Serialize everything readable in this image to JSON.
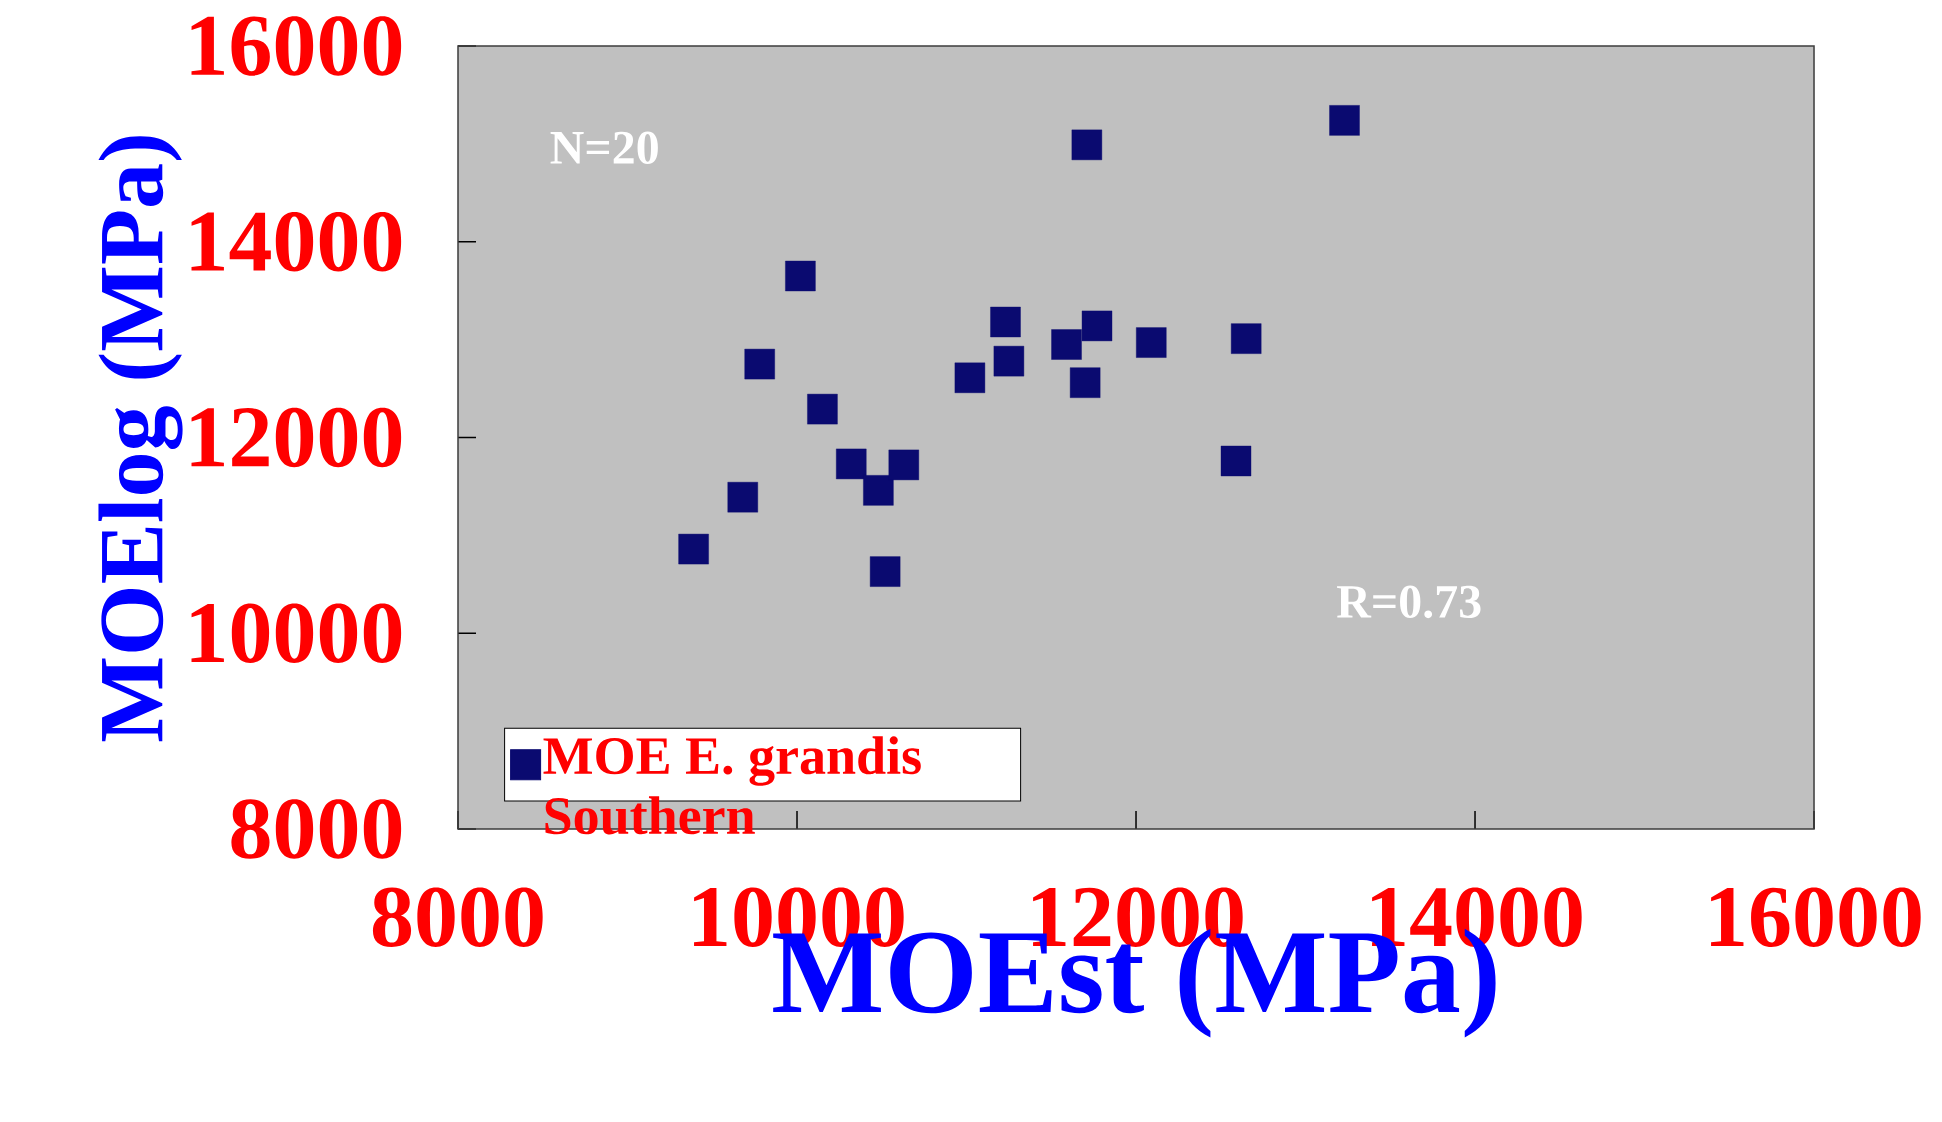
{
  "chart_data": {
    "type": "scatter",
    "xlabel": "MOEst (MPa)",
    "ylabel": "MOElog (MPa)",
    "xlim": [
      8000,
      16000
    ],
    "ylim": [
      8000,
      16000
    ],
    "xticks": [
      8000,
      10000,
      12000,
      14000,
      16000
    ],
    "yticks": [
      8000,
      10000,
      12000,
      14000,
      16000
    ],
    "x": [
      9390,
      9680,
      9780,
      10020,
      10150,
      10320,
      10480,
      10520,
      10630,
      11020,
      11230,
      11250,
      11590,
      11700,
      11710,
      11770,
      12090,
      12590,
      12650,
      13230
    ],
    "series": [
      {
        "name": "MOE E. grandis Southern",
        "color": "#0a0a70",
        "values": [
          10860,
          11390,
          12750,
          13650,
          12290,
          11730,
          11460,
          10630,
          11720,
          12610,
          13180,
          12780,
          12950,
          12560,
          14990,
          13140,
          12970,
          11760,
          13010,
          15240
        ]
      }
    ],
    "annotations": [
      "N=20",
      "R=0.73"
    ],
    "legend": "bottom left",
    "marker": "square"
  }
}
